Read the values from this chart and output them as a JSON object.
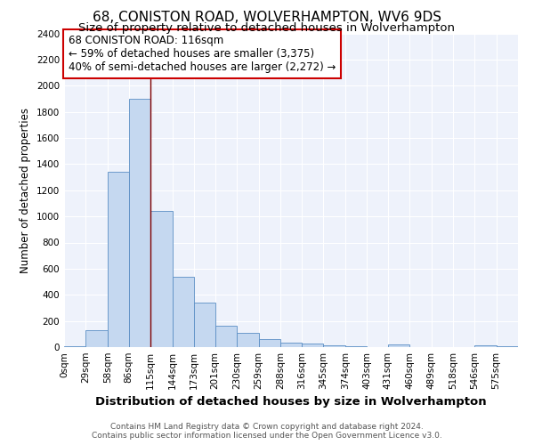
{
  "title1": "68, CONISTON ROAD, WOLVERHAMPTON, WV6 9DS",
  "title2": "Size of property relative to detached houses in Wolverhampton",
  "xlabel": "Distribution of detached houses by size in Wolverhampton",
  "ylabel": "Number of detached properties",
  "footer1": "Contains HM Land Registry data © Crown copyright and database right 2024.",
  "footer2": "Contains public sector information licensed under the Open Government Licence v3.0.",
  "annotation_title": "68 CONISTON ROAD: 116sqm",
  "annotation_line1": "← 59% of detached houses are smaller (3,375)",
  "annotation_line2": "40% of semi-detached houses are larger (2,272) →",
  "property_sqm": 116,
  "bar_labels": [
    "0sqm",
    "29sqm",
    "58sqm",
    "86sqm",
    "115sqm",
    "144sqm",
    "173sqm",
    "201sqm",
    "230sqm",
    "259sqm",
    "288sqm",
    "316sqm",
    "345sqm",
    "374sqm",
    "403sqm",
    "431sqm",
    "460sqm",
    "489sqm",
    "518sqm",
    "546sqm",
    "575sqm"
  ],
  "bar_values": [
    10,
    130,
    1340,
    1900,
    1045,
    540,
    340,
    165,
    110,
    60,
    35,
    25,
    15,
    10,
    0,
    20,
    0,
    0,
    0,
    15,
    10
  ],
  "bar_edges": [
    0,
    29,
    58,
    86,
    115,
    144,
    173,
    201,
    230,
    259,
    288,
    316,
    345,
    374,
    403,
    431,
    460,
    489,
    518,
    546,
    575,
    604
  ],
  "bar_color": "#c5d8f0",
  "bar_edge_color": "#5b8ec4",
  "vline_color": "#7f0000",
  "vline_x": 115,
  "ylim": [
    0,
    2400
  ],
  "fig_background": "#ffffff",
  "ax_background": "#eef2fb",
  "grid_color": "#ffffff",
  "annotation_box_color": "#ffffff",
  "annotation_border_color": "#cc0000",
  "title1_fontsize": 11,
  "title2_fontsize": 9.5,
  "xlabel_fontsize": 9.5,
  "ylabel_fontsize": 8.5,
  "tick_fontsize": 7.5,
  "annotation_fontsize": 8.5,
  "footer_fontsize": 6.5
}
